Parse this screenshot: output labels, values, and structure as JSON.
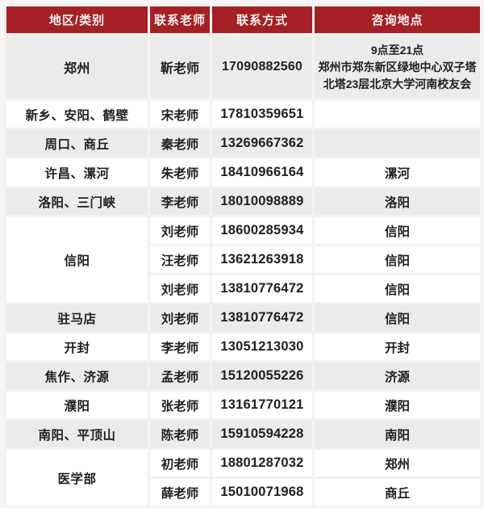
{
  "colors": {
    "header_bg": "#a42025",
    "header_text": "#f9f1f0",
    "row_gray": "#edeaea",
    "row_white": "#ffffff",
    "page_bg": "#f7f5f4",
    "border": "#f4f2f1",
    "text": "#1f1f1f"
  },
  "table": {
    "headers": [
      "地区/类别",
      "联系老师",
      "联系方式",
      "咨询地点"
    ],
    "rows": [
      {
        "region": "郑州",
        "rowspan": 1,
        "teacher": "靳老师",
        "phone": "17090882560",
        "location": "9点至21点\n郑州市郑东新区绿地中心双子塔\n北塔23层北京大学河南校友会",
        "shade": "gray",
        "tall": true
      },
      {
        "region": "新乡、安阳、鹤壁",
        "rowspan": 1,
        "teacher": "宋老师",
        "phone": "17810359651",
        "location": "",
        "shade": "white"
      },
      {
        "region": "周口、商丘",
        "rowspan": 1,
        "teacher": "秦老师",
        "phone": "13269667362",
        "location": "",
        "shade": "gray"
      },
      {
        "region": "许昌、漯河",
        "rowspan": 1,
        "teacher": "朱老师",
        "phone": "18410966164",
        "location": "漯河",
        "shade": "white"
      },
      {
        "region": "洛阳、三门峡",
        "rowspan": 1,
        "teacher": "李老师",
        "phone": "18010098889",
        "location": "洛阳",
        "shade": "gray"
      },
      {
        "region": "信阳",
        "rowspan": 3,
        "teacher": "刘老师",
        "phone": "18600285934",
        "location": "信阳",
        "shade": "white"
      },
      {
        "teacher": "汪老师",
        "phone": "13621263918",
        "location": "信阳",
        "shade": "white"
      },
      {
        "teacher": "刘老师",
        "phone": "13810776472",
        "location": "信阳",
        "shade": "white"
      },
      {
        "region": "驻马店",
        "rowspan": 1,
        "teacher": "刘老师",
        "phone": "13810776472",
        "location": "信阳",
        "shade": "gray"
      },
      {
        "region": "开封",
        "rowspan": 1,
        "teacher": "李老师",
        "phone": "13051213030",
        "location": "开封",
        "shade": "white"
      },
      {
        "region": "焦作、济源",
        "rowspan": 1,
        "teacher": "孟老师",
        "phone": "15120055226",
        "location": "济源",
        "shade": "gray"
      },
      {
        "region": "濮阳",
        "rowspan": 1,
        "teacher": "张老师",
        "phone": "13161770121",
        "location": "濮阳",
        "shade": "white"
      },
      {
        "region": "南阳、平顶山",
        "rowspan": 1,
        "teacher": "陈老师",
        "phone": "15910594228",
        "location": "南阳",
        "shade": "gray"
      },
      {
        "region": "医学部",
        "rowspan": 2,
        "teacher": "初老师",
        "phone": "18801287032",
        "location": "郑州",
        "shade": "white"
      },
      {
        "teacher": "薛老师",
        "phone": "15010071968",
        "location": "商丘",
        "shade": "white"
      }
    ]
  }
}
